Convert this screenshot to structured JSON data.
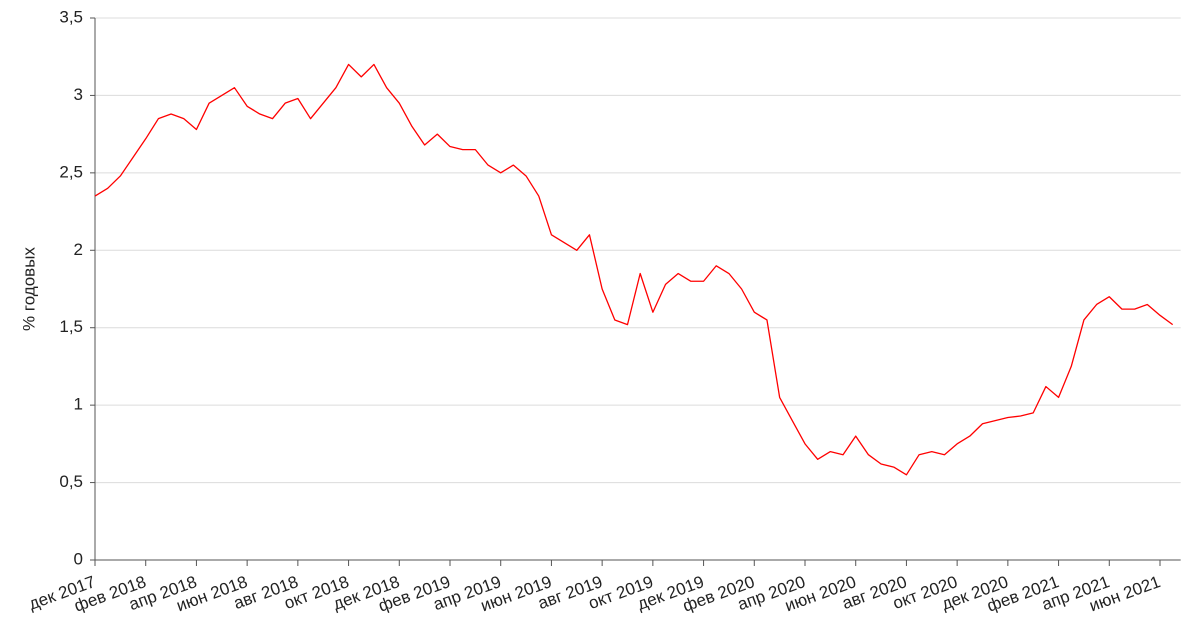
{
  "chart_data": {
    "type": "line",
    "y_label": "% годовых",
    "categories": [
      "дек 2017",
      null,
      null,
      null,
      "фев 2018",
      null,
      null,
      null,
      "апр 2018",
      null,
      null,
      null,
      "июн 2018",
      null,
      null,
      null,
      "авг 2018",
      null,
      null,
      null,
      "окт 2018",
      null,
      null,
      null,
      "дек 2018",
      null,
      null,
      null,
      "фев 2019",
      null,
      null,
      null,
      "апр 2019",
      null,
      null,
      null,
      "июн 2019",
      null,
      null,
      null,
      "авг 2019",
      null,
      null,
      null,
      "окт 2019",
      null,
      null,
      null,
      "дек 2019",
      null,
      null,
      null,
      "фев 2020",
      null,
      null,
      null,
      "апр 2020",
      null,
      null,
      null,
      "июн 2020",
      null,
      null,
      null,
      "авг 2020",
      null,
      null,
      null,
      "окт 2020",
      null,
      null,
      null,
      "дек 2020",
      null,
      null,
      null,
      "фев 2021",
      null,
      null,
      null,
      "апр 2021",
      null,
      null,
      null,
      "июн 2021",
      null
    ],
    "values": [
      2.35,
      2.4,
      2.48,
      2.6,
      2.72,
      2.85,
      2.88,
      2.85,
      2.78,
      2.95,
      3.0,
      3.05,
      2.93,
      2.88,
      2.85,
      2.95,
      2.98,
      2.85,
      2.95,
      3.05,
      3.2,
      3.12,
      3.2,
      3.05,
      2.95,
      2.8,
      2.68,
      2.75,
      2.67,
      2.65,
      2.65,
      2.55,
      2.5,
      2.55,
      2.48,
      2.35,
      2.1,
      2.05,
      2.0,
      2.1,
      1.75,
      1.55,
      1.52,
      1.85,
      1.6,
      1.78,
      1.85,
      1.8,
      1.8,
      1.9,
      1.85,
      1.75,
      1.6,
      1.55,
      1.05,
      0.9,
      0.75,
      0.65,
      0.7,
      0.68,
      0.8,
      0.68,
      0.62,
      0.6,
      0.55,
      0.68,
      0.7,
      0.68,
      0.75,
      0.8,
      0.88,
      0.9,
      0.92,
      0.93,
      0.95,
      1.12,
      1.05,
      1.25,
      1.55,
      1.65,
      1.7,
      1.62,
      1.62,
      1.65,
      1.58,
      1.52
    ],
    "color": "#ff0000",
    "ylim": [
      0,
      3.5
    ],
    "yticks": [
      0,
      {
        "value": 0.5,
        "label": "0,5"
      },
      1,
      {
        "value": 1.5,
        "label": "1,5"
      },
      2,
      {
        "value": 2.5,
        "label": "2,5"
      },
      3,
      {
        "value": 3.5,
        "label": "3,5"
      }
    ],
    "grid": true
  }
}
